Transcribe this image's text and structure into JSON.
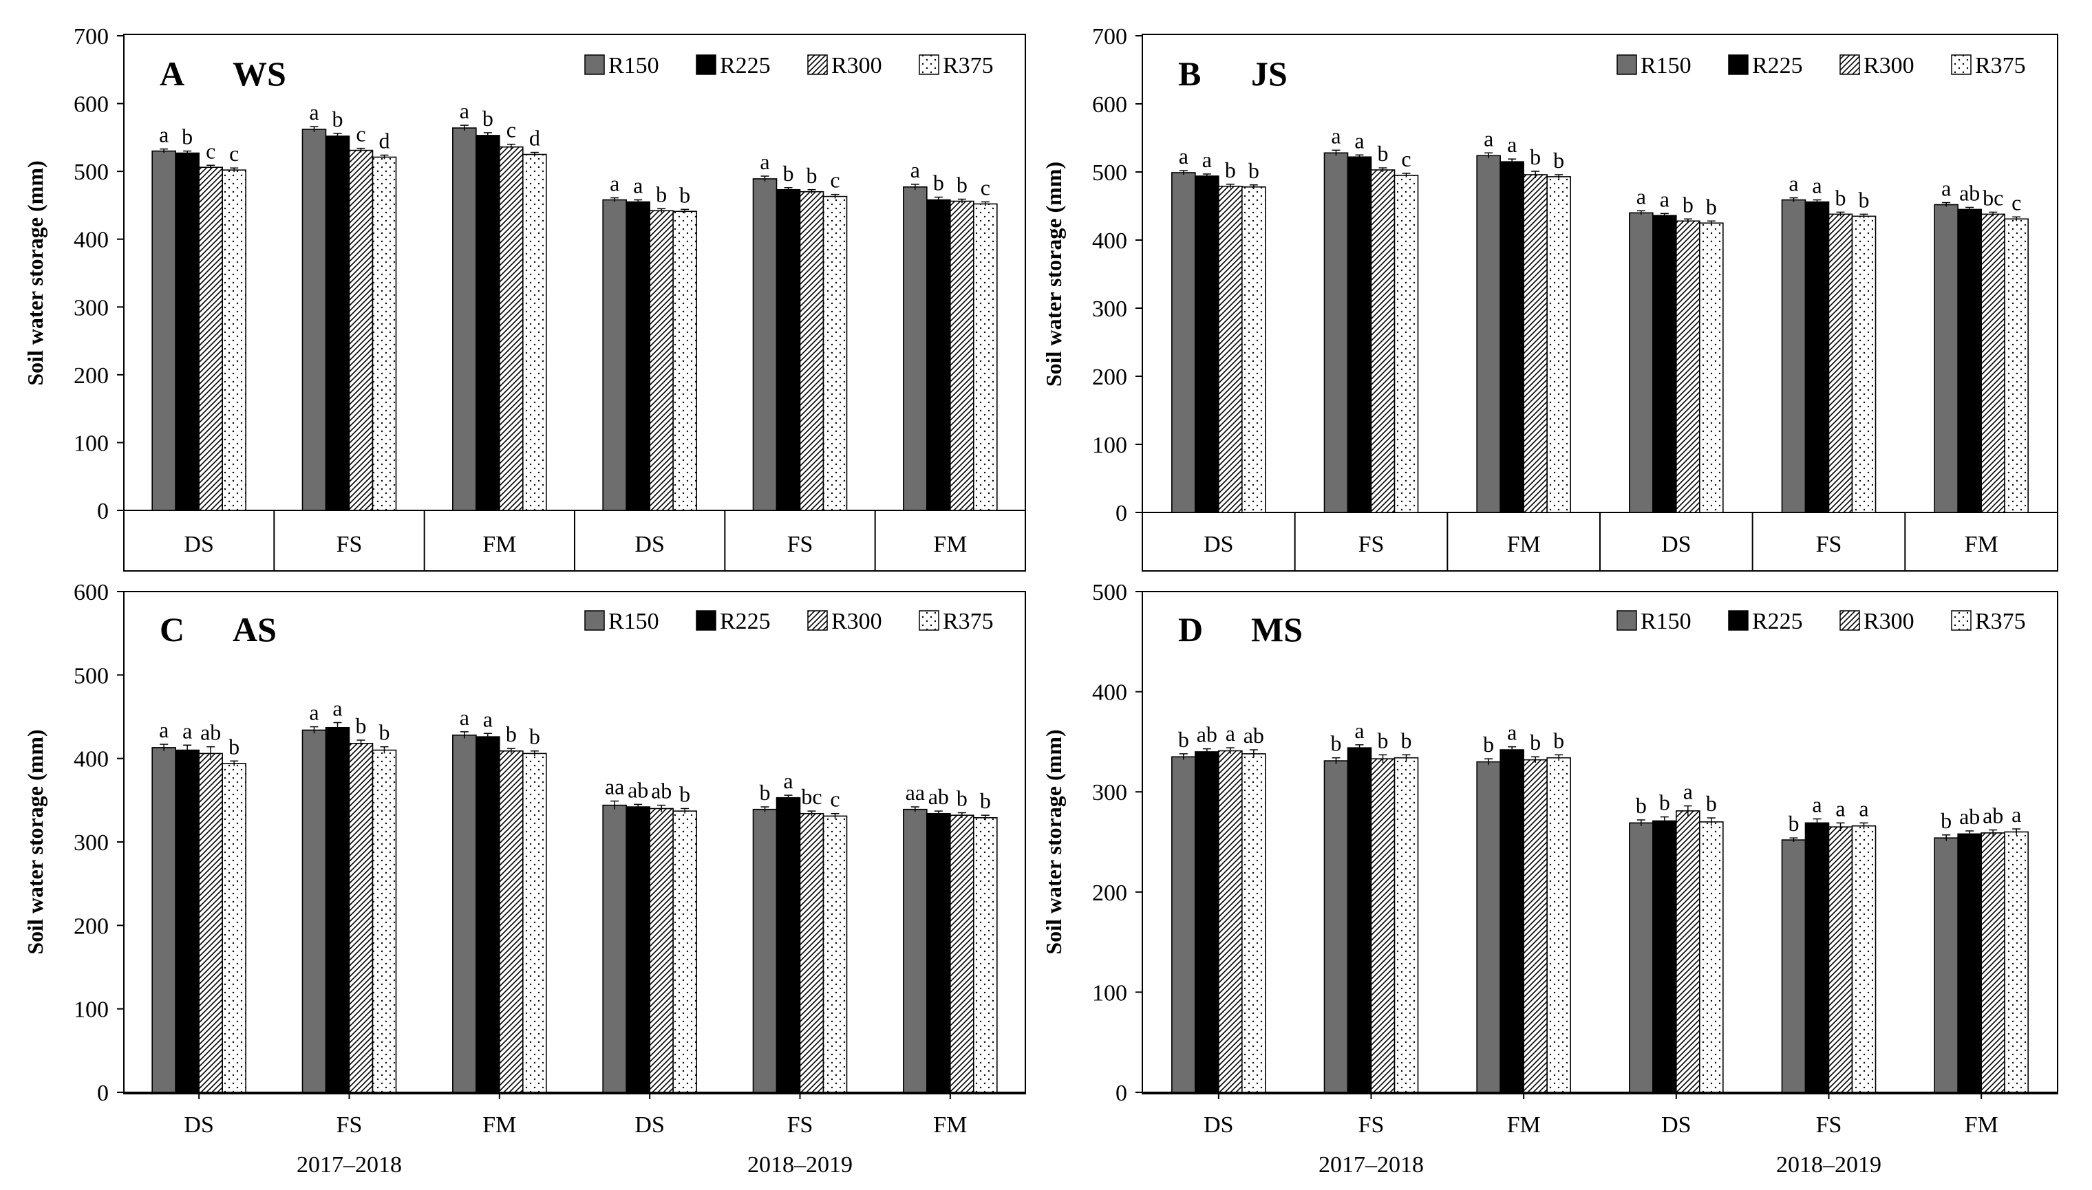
{
  "figure": {
    "year_labels": [
      "2017–2018",
      "2018–2019"
    ],
    "colors": {
      "R150": "#6e6e6e",
      "R225": "#000000",
      "R300": "#ffffff",
      "R375": "#ffffff",
      "axis": "#000000"
    }
  },
  "chart_data": [
    {
      "id": "A",
      "type": "bar",
      "panel_letter": "A",
      "title": "WS",
      "ylabel": "Soil water storage (mm)",
      "ylim": [
        0,
        700
      ],
      "yticks": [
        0,
        100,
        200,
        300,
        400,
        500,
        600,
        700
      ],
      "categories": [
        "DS",
        "FS",
        "FM",
        "DS",
        "FS",
        "FM"
      ],
      "category_years": [
        "2017–2018",
        "2017–2018",
        "2017–2018",
        "2018–2019",
        "2018–2019",
        "2018–2019"
      ],
      "show_year_labels": false,
      "legend_position": "top-right",
      "series": [
        {
          "name": "R150",
          "values": [
            530,
            562,
            564,
            458,
            489,
            477
          ],
          "errors": [
            3,
            4,
            4,
            3,
            4,
            4
          ],
          "letters": [
            "a",
            "a",
            "a",
            "a",
            "a",
            "a"
          ]
        },
        {
          "name": "R225",
          "values": [
            527,
            552,
            553,
            455,
            473,
            458
          ],
          "errors": [
            3,
            4,
            4,
            3,
            3,
            4
          ],
          "letters": [
            "b",
            "b",
            "b",
            "a",
            "b",
            "b"
          ]
        },
        {
          "name": "R300",
          "values": [
            506,
            531,
            536,
            442,
            470,
            456
          ],
          "errors": [
            3,
            3,
            4,
            3,
            3,
            3
          ],
          "letters": [
            "c",
            "c",
            "c",
            "b",
            "b",
            "b"
          ]
        },
        {
          "name": "R375",
          "values": [
            502,
            521,
            525,
            441,
            463,
            452
          ],
          "errors": [
            3,
            3,
            3,
            3,
            3,
            3
          ],
          "letters": [
            "c",
            "d",
            "d",
            "b",
            "c",
            "c"
          ]
        }
      ]
    },
    {
      "id": "B",
      "type": "bar",
      "panel_letter": "B",
      "title": "JS",
      "ylabel": "Soil water storage (mm)",
      "ylim": [
        0,
        700
      ],
      "yticks": [
        0,
        100,
        200,
        300,
        400,
        500,
        600,
        700
      ],
      "categories": [
        "DS",
        "FS",
        "FM",
        "DS",
        "FS",
        "FM"
      ],
      "category_years": [
        "2017–2018",
        "2017–2018",
        "2017–2018",
        "2018–2019",
        "2018–2019",
        "2018–2019"
      ],
      "show_year_labels": false,
      "legend_position": "top-right",
      "series": [
        {
          "name": "R150",
          "values": [
            499,
            528,
            524,
            440,
            459,
            452
          ],
          "errors": [
            3,
            4,
            4,
            3,
            3,
            3
          ],
          "letters": [
            "a",
            "a",
            "a",
            "a",
            "a",
            "a"
          ]
        },
        {
          "name": "R225",
          "values": [
            494,
            522,
            515,
            436,
            456,
            445
          ],
          "errors": [
            3,
            3,
            4,
            3,
            3,
            3
          ],
          "letters": [
            "a",
            "a",
            "a",
            "a",
            "a",
            "ab"
          ]
        },
        {
          "name": "R300",
          "values": [
            479,
            503,
            496,
            428,
            438,
            438
          ],
          "errors": [
            3,
            3,
            5,
            3,
            3,
            3
          ],
          "letters": [
            "b",
            "b",
            "b",
            "b",
            "b",
            "bc"
          ]
        },
        {
          "name": "R375",
          "values": [
            478,
            495,
            493,
            425,
            435,
            431
          ],
          "errors": [
            3,
            3,
            3,
            3,
            3,
            3
          ],
          "letters": [
            "b",
            "c",
            "b",
            "b",
            "b",
            "c"
          ]
        }
      ]
    },
    {
      "id": "C",
      "type": "bar",
      "panel_letter": "C",
      "title": "AS",
      "ylabel": "Soil water storage (mm)",
      "ylim": [
        0,
        600
      ],
      "yticks": [
        0,
        100,
        200,
        300,
        400,
        500,
        600
      ],
      "categories": [
        "DS",
        "FS",
        "FM",
        "DS",
        "FS",
        "FM"
      ],
      "category_years": [
        "2017–2018",
        "2017–2018",
        "2017–2018",
        "2018–2019",
        "2018–2019",
        "2018–2019"
      ],
      "show_year_labels": true,
      "legend_position": "top-right",
      "series": [
        {
          "name": "R150",
          "values": [
            413,
            434,
            428,
            344,
            339,
            339
          ],
          "errors": [
            4,
            4,
            4,
            5,
            3,
            3
          ],
          "letters": [
            "a",
            "a",
            "a",
            "aa",
            "b",
            "aa"
          ]
        },
        {
          "name": "R225",
          "values": [
            410,
            437,
            426,
            342,
            353,
            334
          ],
          "errors": [
            6,
            6,
            4,
            3,
            3,
            3
          ],
          "letters": [
            "a",
            "a",
            "a",
            "ab",
            "a",
            "ab"
          ]
        },
        {
          "name": "R300",
          "values": [
            406,
            418,
            409,
            340,
            334,
            332
          ],
          "errors": [
            8,
            4,
            3,
            4,
            3,
            3
          ],
          "letters": [
            "ab",
            "b",
            "b",
            "ab",
            "bc",
            "b"
          ]
        },
        {
          "name": "R375",
          "values": [
            394,
            410,
            406,
            337,
            331,
            329
          ],
          "errors": [
            3,
            4,
            3,
            3,
            3,
            3
          ],
          "letters": [
            "b",
            "b",
            "b",
            "b",
            "c",
            "b"
          ]
        }
      ]
    },
    {
      "id": "D",
      "type": "bar",
      "panel_letter": "D",
      "title": "MS",
      "ylabel": "Soil water storage (mm)",
      "ylim": [
        0,
        500
      ],
      "yticks": [
        0,
        100,
        200,
        300,
        400,
        500
      ],
      "categories": [
        "DS",
        "FS",
        "FM",
        "DS",
        "FS",
        "FM"
      ],
      "category_years": [
        "2017–2018",
        "2017–2018",
        "2017–2018",
        "2018–2019",
        "2018–2019",
        "2018–2019"
      ],
      "show_year_labels": true,
      "legend_position": "top-right",
      "series": [
        {
          "name": "R150",
          "values": [
            335,
            331,
            330,
            269,
            252,
            254
          ],
          "errors": [
            3,
            3,
            3,
            3,
            2,
            3
          ],
          "letters": [
            "b",
            "b",
            "b",
            "b",
            "b",
            "b"
          ]
        },
        {
          "name": "R225",
          "values": [
            340,
            344,
            342,
            271,
            269,
            258
          ],
          "errors": [
            3,
            3,
            3,
            4,
            4,
            3
          ],
          "letters": [
            "ab",
            "a",
            "a",
            "b",
            "a",
            "ab"
          ]
        },
        {
          "name": "R300",
          "values": [
            341,
            333,
            332,
            281,
            265,
            259
          ],
          "errors": [
            3,
            4,
            3,
            5,
            4,
            3
          ],
          "letters": [
            "a",
            "b",
            "b",
            "a",
            "a",
            "ab"
          ]
        },
        {
          "name": "R375",
          "values": [
            338,
            334,
            334,
            270,
            266,
            260
          ],
          "errors": [
            4,
            3,
            3,
            4,
            3,
            3
          ],
          "letters": [
            "ab",
            "b",
            "b",
            "b",
            "a",
            "a"
          ]
        }
      ]
    }
  ]
}
